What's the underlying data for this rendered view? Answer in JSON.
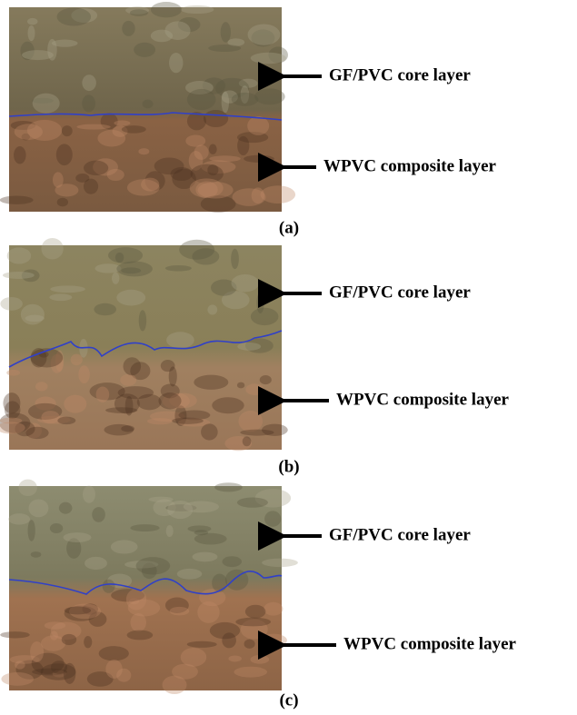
{
  "panels": [
    {
      "label": "(a)",
      "annotations": [
        "GF/PVC core layer",
        "WPVC composite layer"
      ]
    },
    {
      "label": "(b)",
      "annotations": [
        "GF/PVC core layer",
        "WPVC composite layer"
      ]
    },
    {
      "label": "(c)",
      "annotations": [
        "GF/PVC core layer",
        "WPVC composite layer"
      ]
    }
  ]
}
